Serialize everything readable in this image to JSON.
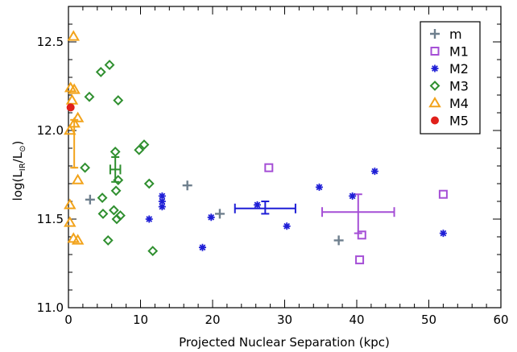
{
  "chart_data": {
    "type": "scatter",
    "xlabel": "Projected Nuclear Separation (kpc)",
    "ylabel": {
      "main": "log(L",
      "sub1": "IR",
      "mid": "/L",
      "sub2": "⊙",
      "end": ")"
    },
    "xlim": [
      0,
      60
    ],
    "ylim": [
      11.0,
      12.7
    ],
    "x_ticks": [
      0,
      10,
      20,
      30,
      40,
      50,
      60
    ],
    "y_ticks": [
      11.0,
      11.5,
      12.0,
      12.5
    ],
    "legend_position": "top-right",
    "series": [
      {
        "name": "m",
        "marker": "plus",
        "color": "#6e7f8d",
        "points": [
          [
            3.0,
            11.61
          ],
          [
            16.5,
            11.69
          ],
          [
            21.0,
            11.53
          ],
          [
            37.5,
            11.38
          ]
        ]
      },
      {
        "name": "M1",
        "marker": "square",
        "color": "#a54fd6",
        "points": [
          [
            27.8,
            11.79
          ],
          [
            40.7,
            11.41
          ],
          [
            40.4,
            11.27
          ],
          [
            52.0,
            11.64
          ]
        ]
      },
      {
        "name": "M2",
        "marker": "asterisk",
        "color": "#1e1ed6",
        "points": [
          [
            11.2,
            11.5
          ],
          [
            13.0,
            11.63
          ],
          [
            13.0,
            11.6
          ],
          [
            13.0,
            11.57
          ],
          [
            18.6,
            11.34
          ],
          [
            19.8,
            11.51
          ],
          [
            26.2,
            11.58
          ],
          [
            30.3,
            11.46
          ],
          [
            34.8,
            11.68
          ],
          [
            39.4,
            11.63
          ],
          [
            42.5,
            11.77
          ],
          [
            52.0,
            11.42
          ]
        ]
      },
      {
        "name": "M3",
        "marker": "diamond",
        "color": "#2f8f2f",
        "points": [
          [
            2.3,
            11.79
          ],
          [
            2.9,
            12.19
          ],
          [
            4.5,
            12.33
          ],
          [
            4.7,
            11.62
          ],
          [
            4.8,
            11.53
          ],
          [
            5.5,
            11.38
          ],
          [
            5.7,
            12.37
          ],
          [
            6.3,
            11.55
          ],
          [
            6.5,
            11.88
          ],
          [
            6.6,
            11.66
          ],
          [
            6.7,
            11.5
          ],
          [
            6.9,
            11.72
          ],
          [
            6.9,
            12.17
          ],
          [
            7.2,
            11.52
          ],
          [
            9.8,
            11.89
          ],
          [
            10.5,
            11.92
          ],
          [
            11.2,
            11.7
          ],
          [
            11.7,
            11.32
          ]
        ]
      },
      {
        "name": "M4",
        "marker": "triangle",
        "color": "#f2a31b",
        "points": [
          [
            0.7,
            12.53
          ],
          [
            0.3,
            12.24
          ],
          [
            0.8,
            12.23
          ],
          [
            0.5,
            12.17
          ],
          [
            0.8,
            12.04
          ],
          [
            1.3,
            12.07
          ],
          [
            0.2,
            12.0
          ],
          [
            1.3,
            11.72
          ],
          [
            0.2,
            11.58
          ],
          [
            0.2,
            11.48
          ],
          [
            0.7,
            11.39
          ],
          [
            1.3,
            11.38
          ]
        ]
      },
      {
        "name": "M5",
        "marker": "circle",
        "color": "#e0201b",
        "points": [
          [
            0.3,
            12.13
          ]
        ]
      }
    ],
    "error_bars": [
      {
        "color": "#f2a31b",
        "x": 0.8,
        "y": 11.79,
        "xerr": 0.3,
        "yerr": [
          0.0,
          0.27
        ],
        "cap_x": false
      },
      {
        "color": "#2f8f2f",
        "x": 6.5,
        "y": 11.78,
        "xerr": 0.7,
        "yerr": [
          0.07,
          0.07
        ],
        "cap_x": true
      },
      {
        "color": "#1e1ed6",
        "x": 27.3,
        "y": 11.56,
        "xerr": 4.2,
        "yerr": [
          0.03,
          0.04
        ],
        "cap_x": true
      },
      {
        "color": "#a54fd6",
        "x": 40.2,
        "y": 11.54,
        "xerr": 5.0,
        "yerr": [
          0.12,
          0.1
        ],
        "cap_x": true
      }
    ]
  }
}
